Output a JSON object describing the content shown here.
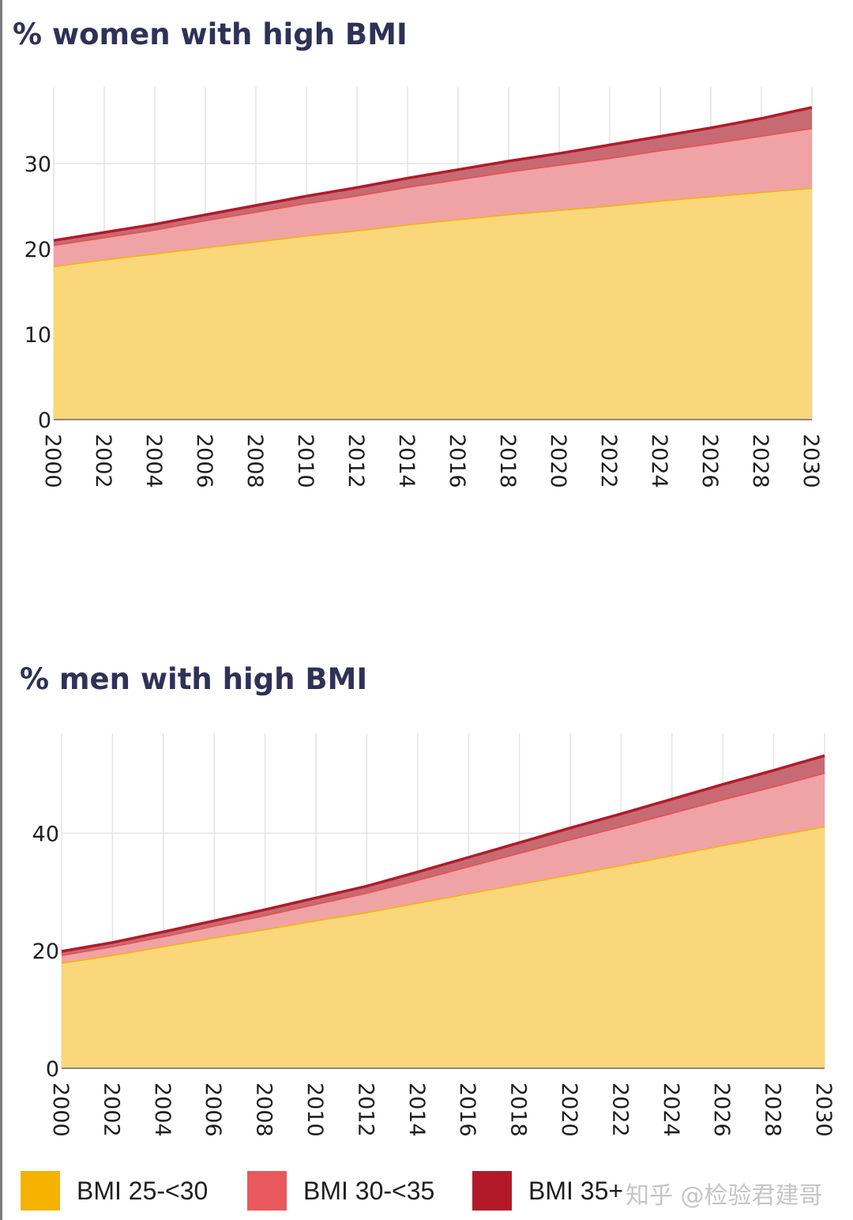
{
  "colors": {
    "bmi_25_30": "#f5b300",
    "bmi_30_35": "#e9585c",
    "bmi_35_plus": "#b21a2a",
    "title": "#2f3157"
  },
  "chart_data": [
    {
      "type": "area",
      "stacked": true,
      "title": "% women with high BMI",
      "xlabel": "",
      "ylabel": "",
      "x": [
        2000,
        2002,
        2004,
        2006,
        2008,
        2010,
        2012,
        2014,
        2016,
        2018,
        2020,
        2022,
        2024,
        2026,
        2028,
        2030
      ],
      "x_ticks": [
        "2000",
        "2002",
        "2004",
        "2006",
        "2008",
        "2010",
        "2012",
        "2014",
        "2016",
        "2018",
        "2020",
        "2022",
        "2024",
        "2026",
        "2028",
        "2030"
      ],
      "y_ticks": [
        "0",
        "10",
        "20",
        "30"
      ],
      "ylim": [
        0,
        39
      ],
      "grid": true,
      "series": [
        {
          "name": "BMI 25-<30",
          "values": [
            18.0,
            18.8,
            19.5,
            20.2,
            20.9,
            21.6,
            22.2,
            22.9,
            23.5,
            24.1,
            24.6,
            25.1,
            25.7,
            26.2,
            26.7,
            27.2
          ]
        },
        {
          "name": "BMI 30-<35",
          "values": [
            2.5,
            2.6,
            2.8,
            3.2,
            3.5,
            3.8,
            4.1,
            4.4,
            4.7,
            5.0,
            5.3,
            5.6,
            5.9,
            6.2,
            6.6,
            7.0
          ]
        },
        {
          "name": "BMI 35+",
          "values": [
            0.5,
            0.55,
            0.6,
            0.6,
            0.7,
            0.8,
            0.9,
            1.0,
            1.1,
            1.2,
            1.3,
            1.5,
            1.6,
            1.8,
            2.0,
            2.4
          ]
        }
      ]
    },
    {
      "type": "area",
      "stacked": true,
      "title": "% men with high BMI",
      "xlabel": "",
      "ylabel": "",
      "x": [
        2000,
        2002,
        2004,
        2006,
        2008,
        2010,
        2012,
        2014,
        2016,
        2018,
        2020,
        2022,
        2024,
        2026,
        2028,
        2030
      ],
      "x_ticks": [
        "2000",
        "2002",
        "2004",
        "2006",
        "2008",
        "2010",
        "2012",
        "2014",
        "2016",
        "2018",
        "2020",
        "2022",
        "2024",
        "2026",
        "2028",
        "2030"
      ],
      "y_ticks": [
        "0",
        "20",
        "40"
      ],
      "ylim": [
        0,
        57
      ],
      "grid": true,
      "series": [
        {
          "name": "BMI 25-<30",
          "values": [
            18.0,
            19.3,
            20.8,
            22.3,
            23.7,
            25.2,
            26.6,
            28.2,
            29.8,
            31.4,
            33.0,
            34.6,
            36.3,
            38.0,
            39.6,
            41.2
          ]
        },
        {
          "name": "BMI 30-<35",
          "values": [
            1.3,
            1.5,
            1.7,
            2.0,
            2.4,
            2.8,
            3.3,
            3.9,
            4.6,
            5.3,
            6.0,
            6.6,
            7.2,
            7.8,
            8.4,
            9.1
          ]
        },
        {
          "name": "BMI 35+",
          "values": [
            0.6,
            0.6,
            0.7,
            0.8,
            0.9,
            1.0,
            1.1,
            1.3,
            1.5,
            1.7,
            1.9,
            2.1,
            2.3,
            2.5,
            2.7,
            2.9
          ]
        }
      ]
    }
  ],
  "legend": {
    "items": [
      {
        "label": "BMI 25-<30",
        "color": "#f5b300"
      },
      {
        "label": "BMI 30-<35",
        "color": "#e9585c"
      },
      {
        "label": "BMI 35+",
        "color": "#b21a2a"
      }
    ]
  },
  "watermark": "知乎 @检验君建哥"
}
